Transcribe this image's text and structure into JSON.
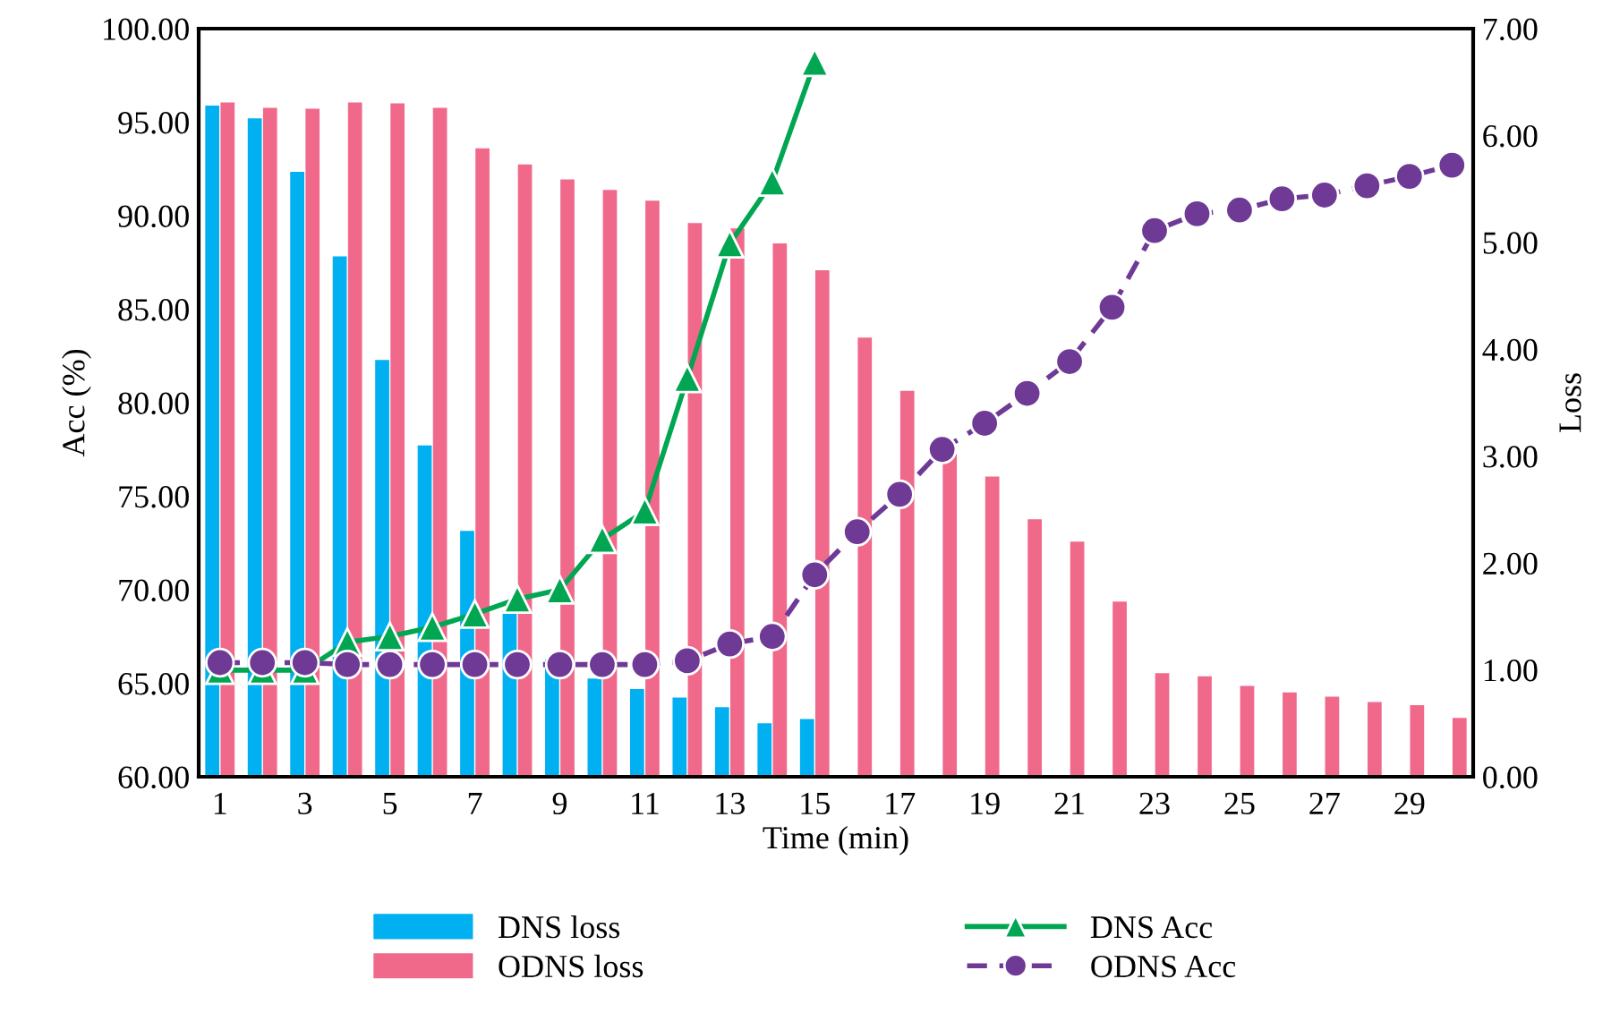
{
  "chart_data": {
    "type": "bar",
    "xlabel": "Time (min)",
    "ylabel": "Acc (%)",
    "y2label": "Loss",
    "categories": [
      "1",
      null,
      "3",
      null,
      "5",
      null,
      "7",
      null,
      "9",
      null,
      "11",
      null,
      "13",
      null,
      "15",
      null,
      "17",
      null,
      "19",
      null,
      "21",
      null,
      "23",
      null,
      "25",
      null,
      "27",
      null,
      "29",
      null
    ],
    "series": [
      {
        "name": "DNS loss",
        "axis": "y2",
        "color": "#00b0f0",
        "values": [
          6.28,
          6.16,
          5.66,
          4.87,
          3.9,
          3.1,
          2.3,
          1.55,
          1.1,
          0.92,
          0.82,
          0.74,
          0.65,
          0.5,
          0.54,
          null,
          null,
          null,
          null,
          null,
          null,
          null,
          null,
          null,
          null,
          null,
          null,
          null,
          null,
          null
        ]
      },
      {
        "name": "ODNS loss",
        "axis": "y2",
        "color": "#f0698a",
        "values": [
          6.31,
          6.26,
          6.25,
          6.31,
          6.3,
          6.26,
          5.88,
          5.73,
          5.59,
          5.49,
          5.39,
          5.18,
          5.13,
          4.99,
          4.74,
          4.11,
          3.61,
          3.02,
          2.81,
          2.41,
          2.2,
          1.64,
          0.97,
          0.94,
          0.85,
          0.79,
          0.75,
          0.7,
          0.67,
          0.55
        ]
      },
      {
        "name": "DNS Acc",
        "type": "line",
        "color": "#00a651",
        "marker": "triangle",
        "line_style": "solid",
        "values": [
          65.7,
          65.7,
          65.7,
          67.2,
          67.5,
          68.0,
          68.7,
          69.5,
          70.0,
          72.7,
          74.2,
          81.3,
          88.5,
          91.8,
          98.2,
          null,
          null,
          null,
          null,
          null,
          null,
          null,
          null,
          null,
          null,
          null,
          null,
          null,
          null,
          null
        ]
      },
      {
        "name": "ODNS Acc",
        "type": "line",
        "color": "#6f3996",
        "marker": "circle",
        "line_style": "dashed",
        "values": [
          66.1,
          66.1,
          66.1,
          66.0,
          66.0,
          66.0,
          66.0,
          66.0,
          66.0,
          66.0,
          66.0,
          66.2,
          67.1,
          67.5,
          70.8,
          73.1,
          75.1,
          77.5,
          78.9,
          80.5,
          82.2,
          85.1,
          89.2,
          90.1,
          90.3,
          90.9,
          91.1,
          91.6,
          92.1,
          92.7
        ]
      }
    ],
    "ylim": [
      60,
      100
    ],
    "yticks": [
      {
        "value": 60,
        "label": "60.00"
      },
      {
        "value": 65,
        "label": "65.00"
      },
      {
        "value": 70,
        "label": "70.00"
      },
      {
        "value": 75,
        "label": "75.00"
      },
      {
        "value": 80,
        "label": "80.00"
      },
      {
        "value": 85,
        "label": "85.00"
      },
      {
        "value": 90,
        "label": "90.00"
      },
      {
        "value": 95,
        "label": "95.00"
      },
      {
        "value": 100,
        "label": "100.00"
      }
    ],
    "y2lim": [
      0,
      7
    ],
    "y2ticks": [
      {
        "value": 0,
        "label": "0.00"
      },
      {
        "value": 1,
        "label": "1.00"
      },
      {
        "value": 2,
        "label": "2.00"
      },
      {
        "value": 3,
        "label": "3.00"
      },
      {
        "value": 4,
        "label": "4.00"
      },
      {
        "value": 5,
        "label": "5.00"
      },
      {
        "value": 6,
        "label": "6.00"
      },
      {
        "value": 7,
        "label": "7.00"
      }
    ],
    "grid": false,
    "legend": "bottom"
  }
}
